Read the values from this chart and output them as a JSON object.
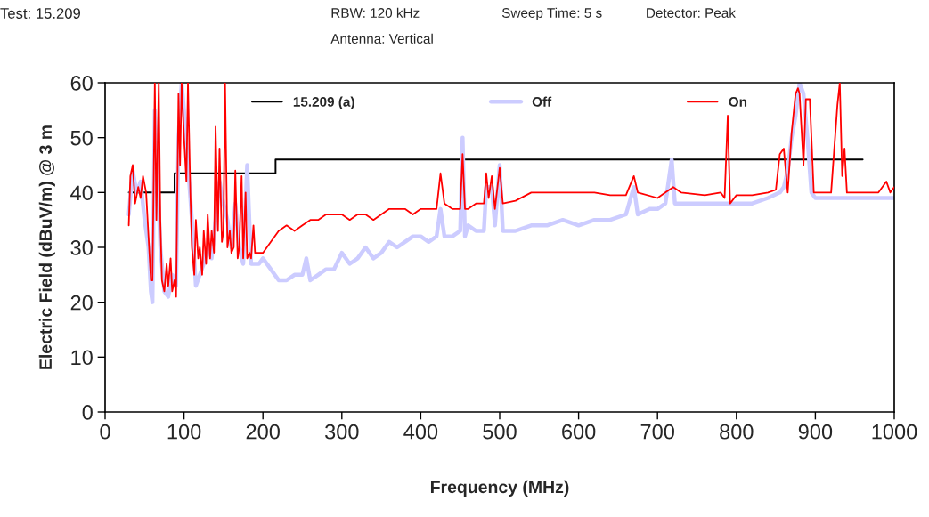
{
  "chart_data": {
    "type": "line",
    "xlabel": "Frequency (MHz)",
    "ylabel": "Electric Field (dBuV/m) @ 3 m",
    "annotations": [
      "Test: 15.209",
      "RBW: 120 kHz",
      "Sweep Time: 5 s",
      "Detector: Peak",
      "Antenna: Vertical"
    ],
    "xlim": [
      0,
      1000
    ],
    "xticks": [
      0,
      100,
      200,
      300,
      400,
      500,
      600,
      700,
      800,
      900,
      1000
    ],
    "ylim": [
      0,
      60
    ],
    "yticks": [
      0,
      10,
      20,
      30,
      40,
      50,
      60
    ],
    "grid": false,
    "legend": "top",
    "marker": "none",
    "line_style": "solid",
    "series": [
      {
        "name": "15.209 (a)",
        "color": "#000000",
        "x": [
          30,
          88,
          88,
          216,
          216,
          960
        ],
        "values": [
          40,
          40,
          43.5,
          43.5,
          46,
          46
        ]
      },
      {
        "name": "Off",
        "color": "#ccccff",
        "x": [
          30,
          35,
          40,
          45,
          50,
          55,
          58,
          60,
          63,
          66,
          70,
          75,
          80,
          85,
          90,
          93,
          97,
          100,
          105,
          110,
          115,
          120,
          125,
          130,
          135,
          140,
          145,
          150,
          155,
          160,
          165,
          170,
          175,
          180,
          185,
          190,
          195,
          200,
          210,
          220,
          230,
          240,
          250,
          255,
          260,
          270,
          280,
          290,
          300,
          310,
          320,
          330,
          340,
          350,
          360,
          370,
          380,
          390,
          400,
          410,
          420,
          425,
          430,
          440,
          450,
          453,
          456,
          460,
          470,
          480,
          483,
          490,
          494,
          500,
          504,
          520,
          540,
          560,
          580,
          600,
          620,
          640,
          660,
          670,
          675,
          690,
          700,
          710,
          718,
          722,
          740,
          760,
          780,
          800,
          820,
          840,
          855,
          860,
          865,
          870,
          875,
          880,
          885,
          890,
          895,
          900,
          920,
          940,
          960,
          980,
          1000
        ],
        "values": [
          36,
          44,
          40,
          42,
          35,
          30,
          22,
          20,
          55,
          45,
          30,
          22,
          21,
          25,
          23,
          50,
          60,
          55,
          45,
          35,
          23,
          25,
          27,
          30,
          28,
          35,
          42,
          38,
          35,
          30,
          38,
          30,
          27,
          45,
          27,
          27,
          27,
          28,
          26,
          24,
          24,
          25,
          25,
          28,
          24,
          25,
          26,
          26,
          29,
          27,
          28,
          30,
          28,
          29,
          31,
          30,
          31,
          32,
          32,
          31,
          32,
          37,
          32,
          32,
          33,
          50,
          32,
          34,
          33,
          33,
          41,
          41,
          34,
          45,
          33,
          33,
          34,
          34,
          35,
          34,
          35,
          35,
          36,
          41,
          36,
          37,
          37,
          38,
          46,
          38,
          38,
          38,
          38,
          38,
          38,
          39,
          40,
          41,
          44,
          50,
          54,
          60,
          58,
          50,
          40,
          39,
          39,
          39,
          39,
          39,
          39
        ]
      },
      {
        "name": "On",
        "color": "#ff0000",
        "x": [
          30,
          32,
          35,
          38,
          42,
          45,
          48,
          52,
          55,
          58,
          60,
          63,
          65,
          68,
          70,
          72,
          75,
          78,
          80,
          83,
          85,
          88,
          90,
          93,
          95,
          97,
          100,
          103,
          105,
          108,
          110,
          113,
          115,
          118,
          120,
          123,
          125,
          128,
          130,
          133,
          135,
          138,
          140,
          143,
          145,
          148,
          150,
          152,
          155,
          158,
          160,
          163,
          165,
          168,
          170,
          173,
          175,
          178,
          180,
          183,
          185,
          188,
          190,
          195,
          200,
          210,
          220,
          230,
          240,
          250,
          260,
          270,
          280,
          290,
          300,
          310,
          320,
          330,
          340,
          350,
          360,
          370,
          380,
          390,
          400,
          410,
          420,
          425,
          430,
          440,
          450,
          453,
          456,
          460,
          470,
          480,
          483,
          486,
          490,
          494,
          500,
          504,
          520,
          540,
          560,
          580,
          600,
          620,
          640,
          660,
          670,
          675,
          700,
          710,
          720,
          730,
          760,
          780,
          785,
          789,
          792,
          800,
          820,
          840,
          850,
          855,
          860,
          865,
          870,
          875,
          878,
          880,
          885,
          888,
          893,
          898,
          920,
          928,
          931,
          934,
          937,
          940,
          960,
          980,
          990,
          995,
          1000
        ],
        "values": [
          34,
          43,
          45,
          38,
          41,
          39,
          43,
          40,
          32,
          24,
          24,
          60,
          35,
          60,
          35,
          24,
          22,
          27,
          23,
          28,
          22,
          24,
          21,
          58,
          45,
          60,
          50,
          42,
          60,
          40,
          30,
          25,
          35,
          28,
          30,
          25,
          33,
          27,
          36,
          28,
          33,
          29,
          52,
          33,
          48,
          31,
          33,
          60,
          30,
          33,
          29,
          30,
          44,
          28,
          30,
          43,
          28,
          40,
          28,
          29,
          28,
          34,
          29,
          29,
          29,
          31,
          33,
          34,
          33,
          34,
          35,
          35,
          36,
          36,
          36,
          35,
          36,
          36,
          35,
          36,
          37,
          37,
          37,
          36,
          37,
          37,
          37,
          43.5,
          38,
          37,
          37,
          47,
          37,
          37,
          38,
          38,
          43.5,
          39,
          43,
          37,
          44.5,
          38,
          38.5,
          40,
          40,
          40,
          40,
          40,
          39.5,
          39.5,
          43,
          40,
          39,
          40,
          41,
          40,
          39.5,
          40,
          39,
          54,
          38,
          39.5,
          39.5,
          40,
          40.5,
          47,
          48,
          40,
          51,
          58,
          59,
          58,
          45,
          57,
          57,
          40,
          40,
          56,
          60,
          43,
          48,
          40,
          40,
          40,
          42,
          40,
          41
        ]
      }
    ]
  }
}
